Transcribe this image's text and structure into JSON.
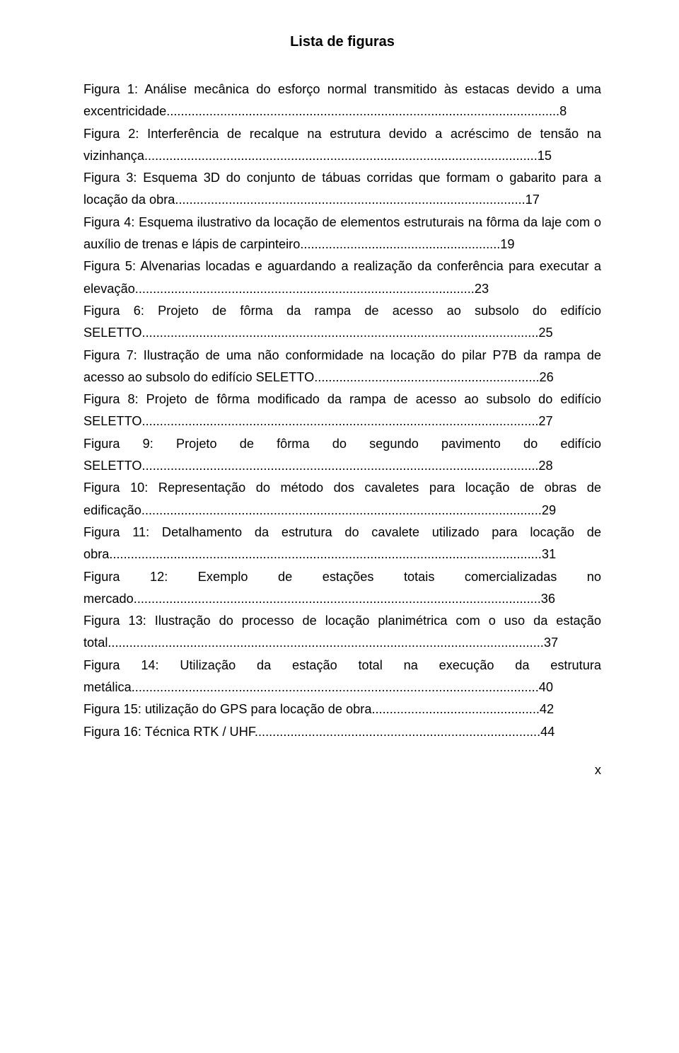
{
  "title": "Lista de figuras",
  "entries": [
    {
      "text": "Figura 1: Análise mecânica do esforço normal transmitido às estacas devido a uma excentricidade..............................................................................................................8",
      "justify": true
    },
    {
      "text": "Figura 2: Interferência de recalque na estrutura devido a acréscimo de tensão na vizinhança..............................................................................................................15",
      "justify": true
    },
    {
      "text": "Figura 3: Esquema 3D do conjunto de tábuas corridas que formam o gabarito para a locação da obra..................................................................................................17",
      "justify": true
    },
    {
      "text": "Figura 4: Esquema ilustrativo da locação de elementos estruturais na fôrma da laje com o auxílio de trenas e lápis de carpinteiro........................................................19",
      "justify": true
    },
    {
      "text": "Figura 5: Alvenarias locadas e aguardando a realização da conferência para executar a elevação...............................................................................................23",
      "justify": true
    },
    {
      "text": "Figura 6: Projeto de fôrma da rampa de acesso ao subsolo do edifício SELETTO...............................................................................................................25",
      "justify": true
    },
    {
      "text": "Figura 7: Ilustração de uma não conformidade na locação do pilar P7B da rampa de acesso ao subsolo do edifício SELETTO...............................................................26",
      "justify": true
    },
    {
      "text": "Figura 8: Projeto de fôrma modificado da rampa de acesso ao subsolo do edifício SELETTO...............................................................................................................27",
      "justify": true
    },
    {
      "text": "Figura 9: Projeto de fôrma do segundo pavimento do edifício SELETTO...............................................................................................................28",
      "justify": true
    },
    {
      "text": "Figura 10: Representação do método dos cavaletes para locação de obras de edificação................................................................................................................29",
      "justify": true
    },
    {
      "text": "Figura 11: Detalhamento da estrutura do cavalete utilizado para locação de obra.........................................................................................................................31",
      "justify": true
    },
    {
      "text": "Figura 12: Exemplo de estações totais comercializadas no mercado..................................................................................................................36",
      "justify": true
    },
    {
      "text": "Figura 13: Ilustração do processo de locação planimétrica com o uso da estação total..........................................................................................................................37",
      "justify": true
    },
    {
      "text": "Figura 14: Utilização da estação total na execução da estrutura metálica..................................................................................................................40",
      "justify": true
    },
    {
      "text": "Figura 15: utilização do GPS para locação de obra...............................................42",
      "justify": false
    },
    {
      "text": "Figura 16: Técnica RTK / UHF................................................................................44",
      "justify": false
    }
  ],
  "page_number": "x",
  "colors": {
    "text": "#000000",
    "background": "#ffffff"
  },
  "fontsize_body": 18.2,
  "fontsize_title": 20
}
